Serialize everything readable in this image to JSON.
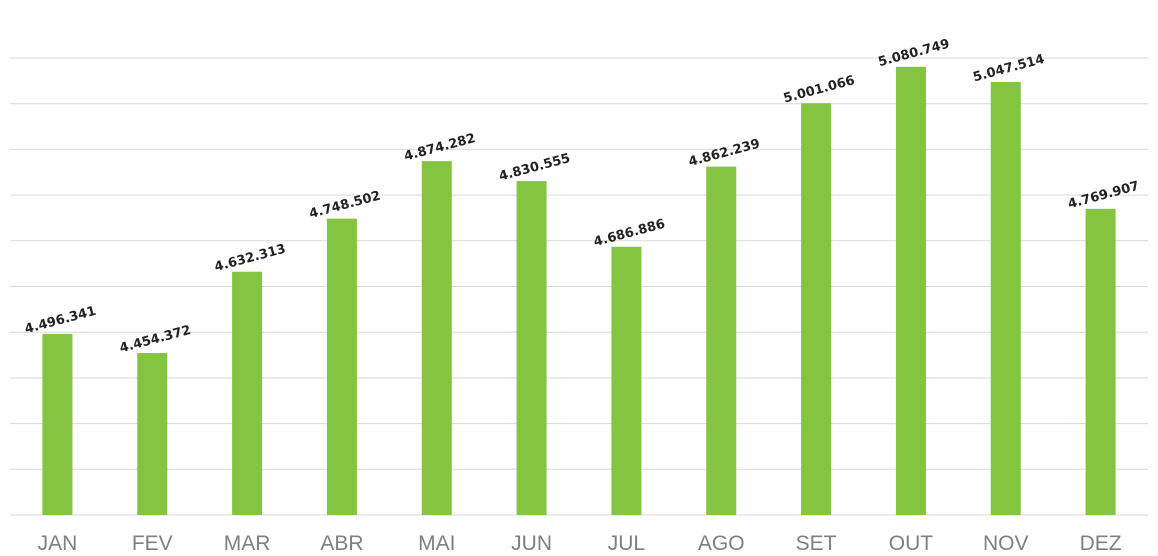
{
  "chart_data": {
    "type": "bar",
    "categories": [
      "JAN",
      "FEV",
      "MAR",
      "ABR",
      "MAI",
      "JUN",
      "JUL",
      "AGO",
      "SET",
      "OUT",
      "NOV",
      "DEZ"
    ],
    "values": [
      4496341,
      4454372,
      4632313,
      4748502,
      4874282,
      4830555,
      4686886,
      4862239,
      5001066,
      5080749,
      5047514,
      4769907
    ],
    "value_labels": [
      "4.496.341",
      "4.454.372",
      "4.632.313",
      "4.748.502",
      "4.874.282",
      "4.830.555",
      "4.686.886",
      "4.862.239",
      "5.001.066",
      "5.080.749",
      "5.047.514",
      "4.769.907"
    ],
    "color": "#84c441",
    "ylim": [
      4100000,
      5100000
    ],
    "yticks": [
      4100000,
      4200000,
      4300000,
      4400000,
      4500000,
      4600000,
      4700000,
      4800000,
      4900000,
      5000000,
      5100000
    ],
    "grid": true
  }
}
